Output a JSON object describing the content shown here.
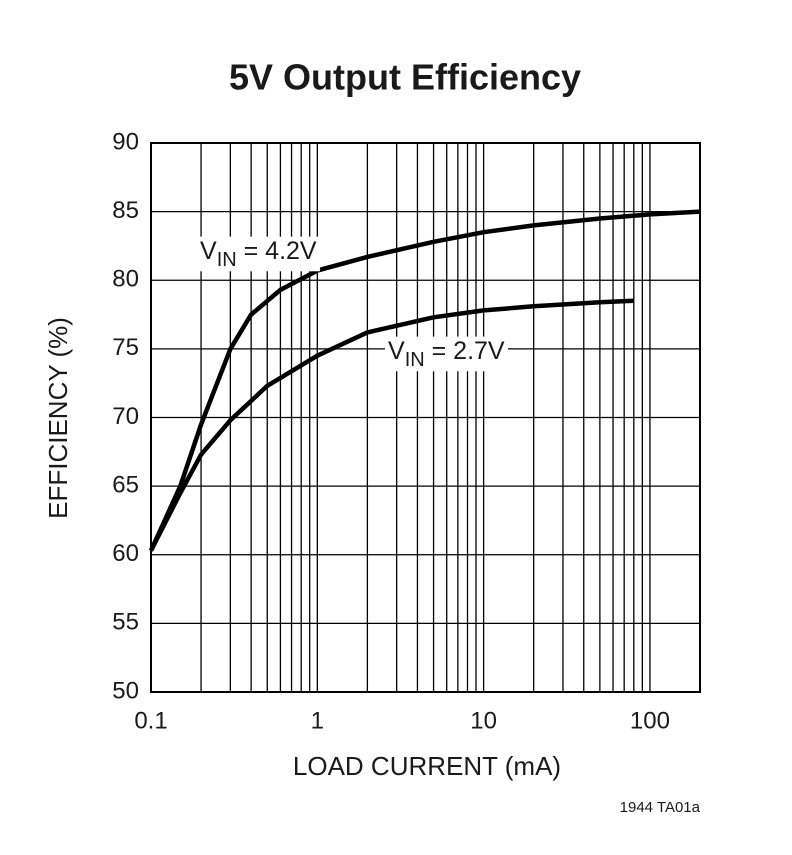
{
  "chart_data": {
    "type": "line",
    "title": "5V Output Efficiency",
    "xlabel": "LOAD CURRENT (mA)",
    "ylabel": "EFFICIENCY (%)",
    "note": "1944 TA01a",
    "xscale": "log",
    "xlim": [
      0.1,
      200
    ],
    "ylim": [
      50,
      90
    ],
    "xticks": [
      0.1,
      1,
      10,
      100
    ],
    "xminor": [
      0.2,
      0.3,
      0.4,
      0.5,
      0.6,
      0.7,
      0.8,
      0.9,
      2,
      3,
      4,
      5,
      6,
      7,
      8,
      9,
      20,
      30,
      40,
      50,
      60,
      70,
      80,
      90
    ],
    "yticks": [
      50,
      55,
      60,
      65,
      70,
      75,
      80,
      85,
      90
    ],
    "grid": true,
    "series": [
      {
        "label": [
          "V",
          "IN",
          " = 4.2V"
        ],
        "color": "#000000",
        "x": [
          0.1,
          0.15,
          0.2,
          0.3,
          0.4,
          0.6,
          1,
          2,
          5,
          10,
          20,
          50,
          100,
          200
        ],
        "values": [
          60.3,
          65,
          69.5,
          75,
          77.5,
          79.3,
          80.7,
          81.7,
          82.8,
          83.5,
          84,
          84.5,
          84.8,
          85
        ]
      },
      {
        "label": [
          "V",
          "IN",
          " = 2.7V"
        ],
        "color": "#000000",
        "x": [
          0.1,
          0.15,
          0.2,
          0.3,
          0.5,
          1,
          2,
          5,
          10,
          20,
          50,
          80
        ],
        "values": [
          60.3,
          64.5,
          67.3,
          69.8,
          72.3,
          74.5,
          76.2,
          77.3,
          77.8,
          78.1,
          78.4,
          78.5
        ]
      }
    ]
  }
}
